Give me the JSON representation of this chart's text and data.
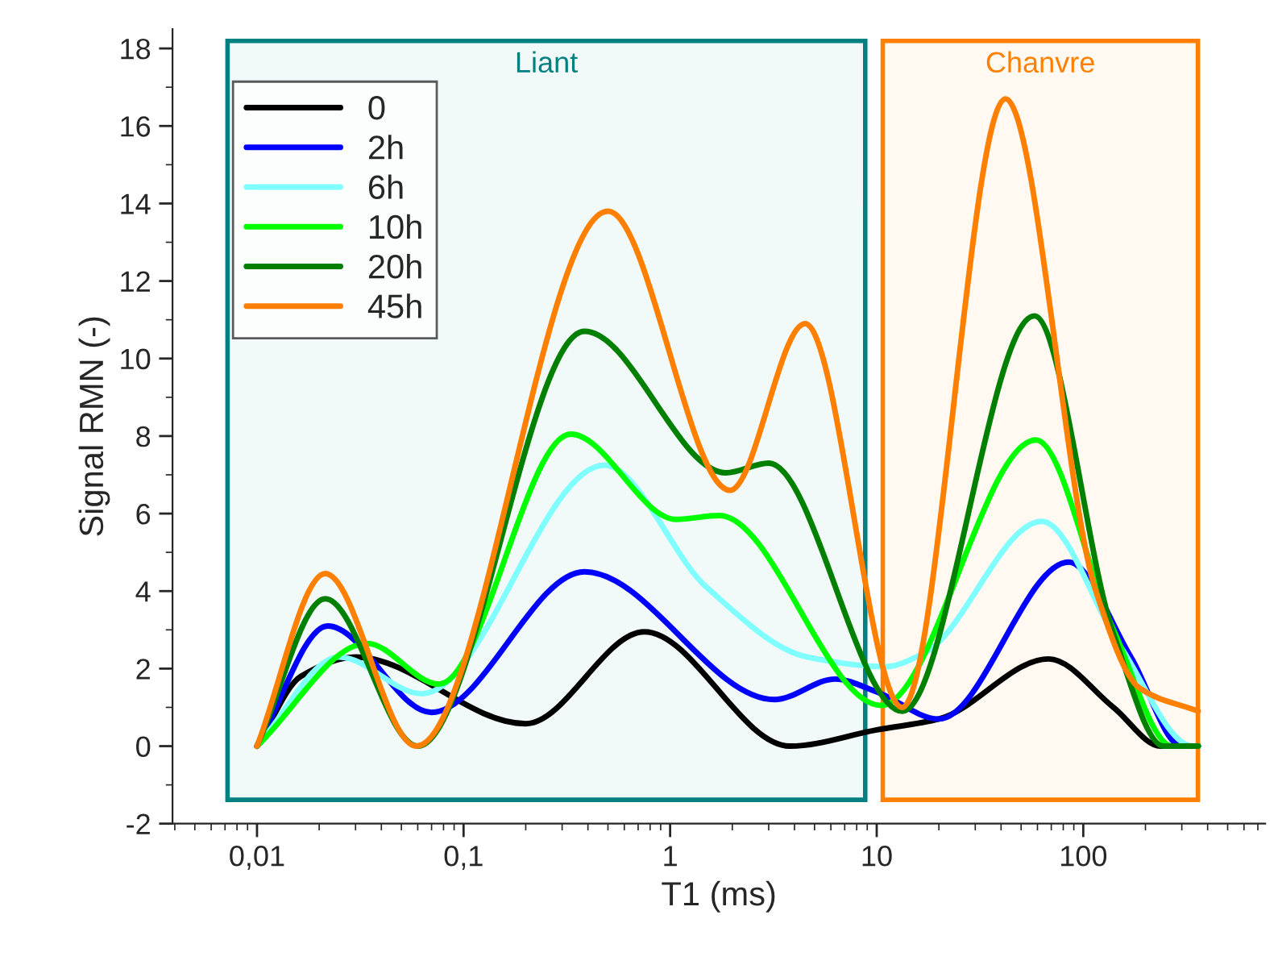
{
  "chart_data": {
    "type": "line",
    "xlabel": "T1 (ms)",
    "ylabel": "Signal RMN (-)",
    "log": "x",
    "xlim": [
      0.0039,
      760
    ],
    "ylim": [
      -2,
      18.5
    ],
    "xticks": [
      {
        "value": 0.01,
        "label": "0,01"
      },
      {
        "value": 0.1,
        "label": "0,1"
      },
      1,
      10,
      100
    ],
    "yticks": [
      -2,
      0,
      2,
      4,
      6,
      8,
      10,
      12,
      14,
      16,
      18
    ],
    "grid": false,
    "legend": "top left",
    "line_style": "solid",
    "marker": "none",
    "bands": [
      {
        "axis": "x",
        "from": 0.0072,
        "to": 8.8,
        "label": "Liant",
        "color": "#008080"
      },
      {
        "axis": "x",
        "from": 10.7,
        "to": 359,
        "label": "Chanvre",
        "color": "#ff8000"
      }
    ],
    "series": [
      {
        "name": "0",
        "color": "#000000",
        "x": [
          0.01,
          0.0163,
          0.03,
          0.2,
          0.75,
          3.8,
          10,
          20,
          68,
          140,
          237,
          360
        ],
        "values": [
          0,
          1.8,
          2.3,
          0.58,
          2.95,
          0,
          0.42,
          0.7,
          2.25,
          1.0,
          0,
          0
        ]
      },
      {
        "name": "2h",
        "color": "#0000ff",
        "x": [
          0.01,
          0.022,
          0.07,
          0.385,
          3.2,
          6.3,
          10,
          20,
          85,
          170,
          300,
          360
        ],
        "values": [
          0,
          3.1,
          0.87,
          4.5,
          1.2,
          1.73,
          1.4,
          0.7,
          4.75,
          2.3,
          0,
          0
        ]
      },
      {
        "name": "6h",
        "color": "#80ffff",
        "x": [
          0.01,
          0.025,
          0.063,
          0.48,
          1.5,
          4.6,
          11,
          17,
          63,
          150,
          340,
          360
        ],
        "values": [
          0,
          2.3,
          1.35,
          7.25,
          4.1,
          2.3,
          2.05,
          2.4,
          5.8,
          2.6,
          0,
          0
        ]
      },
      {
        "name": "10h",
        "color": "#00ff00",
        "x": [
          0.01,
          0.034,
          0.076,
          0.33,
          1.07,
          1.73,
          10.5,
          59,
          140,
          270,
          360
        ],
        "values": [
          0,
          2.65,
          1.6,
          8.05,
          5.85,
          5.95,
          1.05,
          7.9,
          3.0,
          0,
          0
        ]
      },
      {
        "name": "20h",
        "color": "#008000",
        "x": [
          0.01,
          0.0214,
          0.06,
          0.385,
          1.86,
          3.0,
          13.3,
          58,
          140,
          245,
          360
        ],
        "values": [
          0,
          3.8,
          0,
          10.7,
          7.05,
          7.3,
          0.9,
          11.1,
          2.9,
          0,
          0
        ]
      },
      {
        "name": "45h",
        "color": "#ff8000",
        "x": [
          0.01,
          0.0214,
          0.059,
          0.5,
          1.95,
          4.5,
          13.3,
          42,
          115,
          187,
          360
        ],
        "values": [
          0,
          4.45,
          0,
          13.8,
          6.6,
          10.9,
          1.0,
          16.7,
          4.0,
          1.5,
          0.9
        ]
      }
    ]
  }
}
